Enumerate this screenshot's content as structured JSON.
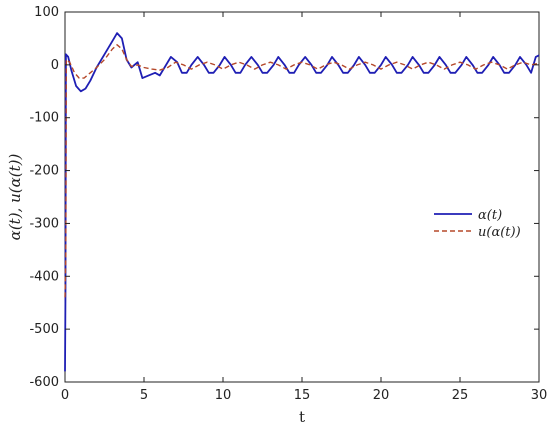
{
  "chart_data": {
    "type": "line",
    "title": "",
    "xlabel": "t",
    "ylabel": "α(t), u(α(t))",
    "xlim": [
      0,
      30
    ],
    "ylim": [
      -600,
      100
    ],
    "xticks": [
      "0",
      "5",
      "10",
      "15",
      "20",
      "25",
      "30"
    ],
    "yticks": [
      "100",
      "0",
      "-100",
      "-200",
      "-300",
      "-400",
      "-500",
      "-600"
    ],
    "grid": false,
    "legend_position": "right-middle",
    "series": [
      {
        "name": "α(t)",
        "color": "#1f1fb4",
        "style": "solid",
        "points": [
          [
            0,
            -580
          ],
          [
            0.03,
            -420
          ],
          [
            0.06,
            20
          ],
          [
            0.2,
            15
          ],
          [
            0.4,
            -10
          ],
          [
            0.7,
            -40
          ],
          [
            1.0,
            -50
          ],
          [
            1.3,
            -45
          ],
          [
            1.6,
            -30
          ],
          [
            2.0,
            -5
          ],
          [
            2.5,
            20
          ],
          [
            3.0,
            45
          ],
          [
            3.3,
            60
          ],
          [
            3.6,
            50
          ],
          [
            3.9,
            10
          ],
          [
            4.2,
            -5
          ],
          [
            4.6,
            5
          ],
          [
            4.9,
            -25
          ],
          [
            5.3,
            -20
          ],
          [
            5.7,
            -15
          ],
          [
            6.0,
            -20
          ],
          [
            6.4,
            0
          ],
          [
            6.7,
            15
          ],
          [
            7.1,
            5
          ],
          [
            7.4,
            -15
          ],
          [
            7.7,
            -15
          ],
          [
            8.0,
            0
          ],
          [
            8.4,
            15
          ],
          [
            8.8,
            0
          ],
          [
            9.1,
            -15
          ],
          [
            9.4,
            -15
          ],
          [
            9.8,
            0
          ],
          [
            10.1,
            15
          ],
          [
            10.5,
            0
          ],
          [
            10.8,
            -15
          ],
          [
            11.1,
            -15
          ],
          [
            11.4,
            0
          ],
          [
            11.8,
            15
          ],
          [
            12.2,
            0
          ],
          [
            12.5,
            -15
          ],
          [
            12.8,
            -15
          ],
          [
            13.2,
            0
          ],
          [
            13.5,
            15
          ],
          [
            13.9,
            0
          ],
          [
            14.2,
            -15
          ],
          [
            14.5,
            -15
          ],
          [
            14.8,
            0
          ],
          [
            15.2,
            15
          ],
          [
            15.6,
            0
          ],
          [
            15.9,
            -15
          ],
          [
            16.2,
            -15
          ],
          [
            16.6,
            0
          ],
          [
            16.9,
            15
          ],
          [
            17.3,
            0
          ],
          [
            17.6,
            -15
          ],
          [
            17.9,
            -15
          ],
          [
            18.3,
            0
          ],
          [
            18.6,
            15
          ],
          [
            19.0,
            0
          ],
          [
            19.3,
            -15
          ],
          [
            19.6,
            -15
          ],
          [
            20.0,
            0
          ],
          [
            20.3,
            15
          ],
          [
            20.7,
            0
          ],
          [
            21.0,
            -15
          ],
          [
            21.3,
            -15
          ],
          [
            21.7,
            0
          ],
          [
            22.0,
            15
          ],
          [
            22.4,
            0
          ],
          [
            22.7,
            -15
          ],
          [
            23.0,
            -15
          ],
          [
            23.4,
            0
          ],
          [
            23.7,
            15
          ],
          [
            24.1,
            0
          ],
          [
            24.4,
            -15
          ],
          [
            24.7,
            -15
          ],
          [
            25.1,
            0
          ],
          [
            25.4,
            15
          ],
          [
            25.8,
            0
          ],
          [
            26.1,
            -15
          ],
          [
            26.4,
            -15
          ],
          [
            26.8,
            0
          ],
          [
            27.1,
            15
          ],
          [
            27.5,
            0
          ],
          [
            27.8,
            -15
          ],
          [
            28.1,
            -15
          ],
          [
            28.5,
            0
          ],
          [
            28.8,
            15
          ],
          [
            29.2,
            0
          ],
          [
            29.5,
            -15
          ],
          [
            29.8,
            15
          ],
          [
            30,
            18
          ]
        ]
      },
      {
        "name": "u(α(t))",
        "color": "#b5482a",
        "style": "dashed",
        "points": [
          [
            0,
            -440
          ],
          [
            0.05,
            -360
          ],
          [
            0.08,
            10
          ],
          [
            0.3,
            5
          ],
          [
            0.6,
            -15
          ],
          [
            0.9,
            -25
          ],
          [
            1.2,
            -25
          ],
          [
            1.6,
            -15
          ],
          [
            2.0,
            -5
          ],
          [
            2.5,
            10
          ],
          [
            3.0,
            30
          ],
          [
            3.3,
            38
          ],
          [
            3.6,
            30
          ],
          [
            3.9,
            10
          ],
          [
            4.2,
            -3
          ],
          [
            4.6,
            0
          ],
          [
            5.0,
            -5
          ],
          [
            5.5,
            -8
          ],
          [
            6.0,
            -10
          ],
          [
            6.5,
            -5
          ],
          [
            7.0,
            5
          ],
          [
            7.5,
            0
          ],
          [
            8.0,
            -8
          ],
          [
            8.5,
            0
          ],
          [
            9.0,
            5
          ],
          [
            9.5,
            0
          ],
          [
            10.0,
            -8
          ],
          [
            10.5,
            0
          ],
          [
            11.0,
            5
          ],
          [
            11.5,
            0
          ],
          [
            12.0,
            -8
          ],
          [
            12.5,
            0
          ],
          [
            13.0,
            5
          ],
          [
            13.5,
            0
          ],
          [
            14.0,
            -8
          ],
          [
            14.5,
            0
          ],
          [
            15.0,
            5
          ],
          [
            15.5,
            0
          ],
          [
            16.0,
            -8
          ],
          [
            16.5,
            0
          ],
          [
            17.0,
            5
          ],
          [
            17.5,
            0
          ],
          [
            18.0,
            -8
          ],
          [
            18.5,
            0
          ],
          [
            19.0,
            5
          ],
          [
            19.5,
            0
          ],
          [
            20.0,
            -8
          ],
          [
            20.5,
            0
          ],
          [
            21.0,
            5
          ],
          [
            21.5,
            0
          ],
          [
            22.0,
            -8
          ],
          [
            22.5,
            0
          ],
          [
            23.0,
            5
          ],
          [
            23.5,
            0
          ],
          [
            24.0,
            -8
          ],
          [
            24.5,
            0
          ],
          [
            25.0,
            5
          ],
          [
            25.5,
            0
          ],
          [
            26.0,
            -8
          ],
          [
            26.5,
            0
          ],
          [
            27.0,
            5
          ],
          [
            27.5,
            0
          ],
          [
            28.0,
            -8
          ],
          [
            28.5,
            0
          ],
          [
            29.0,
            5
          ],
          [
            29.5,
            0
          ],
          [
            30,
            3
          ]
        ]
      }
    ]
  }
}
